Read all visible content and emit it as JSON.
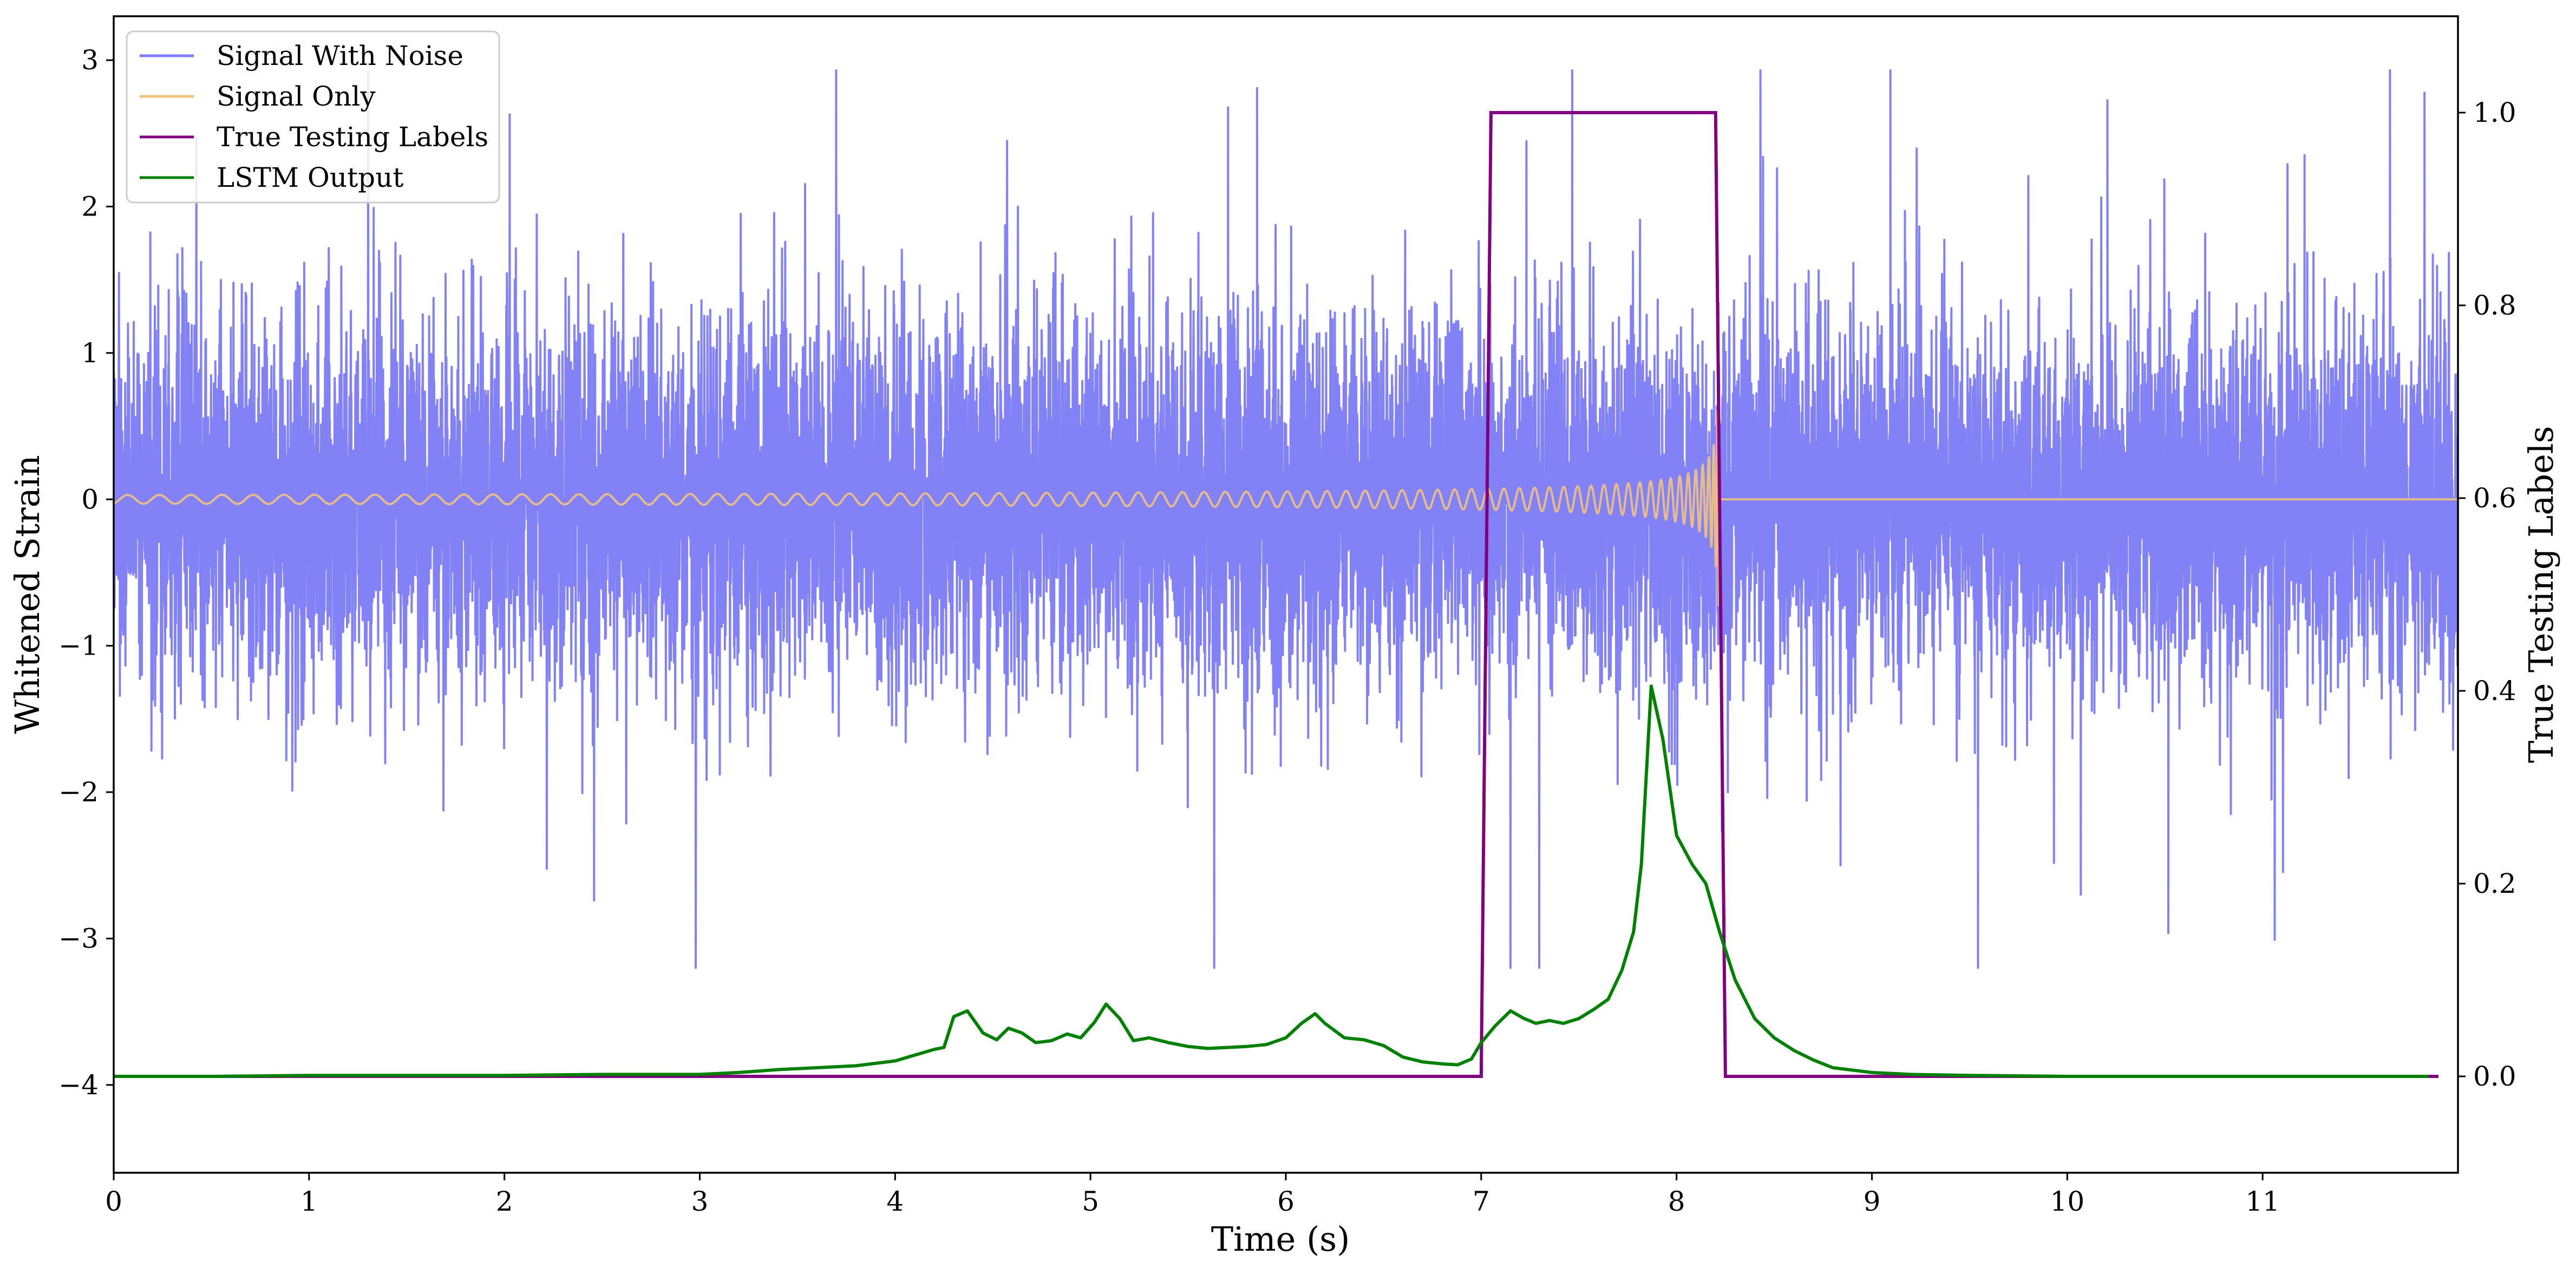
{
  "chart_data": {
    "type": "line",
    "title": "",
    "xlabel": "Time (s)",
    "ylabel_left": "Whitened Strain",
    "ylabel_right": "True Testing Labels",
    "xlim": [
      0,
      12
    ],
    "ylim_left": [
      -4.6,
      3.3
    ],
    "ylim_right": [
      -0.1,
      1.1
    ],
    "x_ticks": [
      0,
      1,
      2,
      3,
      4,
      5,
      6,
      7,
      8,
      9,
      10,
      11
    ],
    "x_tick_labels": [
      "0",
      "1",
      "2",
      "3",
      "4",
      "5",
      "6",
      "7",
      "8",
      "9",
      "10",
      "11"
    ],
    "y_left_ticks": [
      -4,
      -3,
      -2,
      -1,
      0,
      1,
      2,
      3
    ],
    "y_left_tick_labels": [
      "−4",
      "−3",
      "−2",
      "−1",
      "0",
      "1",
      "2",
      "3"
    ],
    "y_right_ticks": [
      0.0,
      0.2,
      0.4,
      0.6,
      0.8,
      1.0
    ],
    "y_right_tick_labels": [
      "0.0",
      "0.2",
      "0.4",
      "0.6",
      "0.8",
      "1.0"
    ],
    "grid": false,
    "legend_position": "top-left",
    "series": [
      {
        "name": "Signal With Noise",
        "axis": "left",
        "color": "#7b7bf5",
        "description_kind": "noise",
        "typical_amplitude_sd": 0.62,
        "peak_extent": [
          -3.2,
          2.93
        ]
      },
      {
        "name": "Signal Only",
        "axis": "left",
        "color": "#f3c27e",
        "description_kind": "chirp",
        "amplitude_start": 0.03,
        "amplitude_end": 0.75,
        "end_time": 8.22
      },
      {
        "name": "True Testing Labels",
        "axis": "right",
        "color": "#800080",
        "x": [
          0,
          7.0,
          7.05,
          8.2,
          8.25,
          11.9
        ],
        "y": [
          0,
          0,
          1,
          1,
          0,
          0
        ]
      },
      {
        "name": "LSTM Output",
        "axis": "right",
        "color": "#008000",
        "x": [
          0,
          0.5,
          1,
          1.5,
          2,
          2.5,
          2.8,
          3.0,
          3.2,
          3.4,
          3.6,
          3.8,
          4.0,
          4.1,
          4.2,
          4.25,
          4.3,
          4.37,
          4.45,
          4.52,
          4.58,
          4.65,
          4.72,
          4.8,
          4.88,
          4.95,
          5.02,
          5.08,
          5.15,
          5.22,
          5.3,
          5.4,
          5.5,
          5.6,
          5.7,
          5.8,
          5.9,
          6.0,
          6.08,
          6.15,
          6.2,
          6.3,
          6.4,
          6.5,
          6.6,
          6.7,
          6.8,
          6.88,
          6.95,
          7.0,
          7.07,
          7.15,
          7.22,
          7.28,
          7.35,
          7.42,
          7.5,
          7.58,
          7.65,
          7.72,
          7.78,
          7.82,
          7.87,
          7.93,
          8.0,
          8.08,
          8.15,
          8.22,
          8.3,
          8.4,
          8.5,
          8.6,
          8.7,
          8.8,
          9.0,
          9.2,
          9.5,
          10,
          11,
          11.85
        ],
        "y": [
          0,
          0,
          0.001,
          0.001,
          0.001,
          0.002,
          0.002,
          0.002,
          0.004,
          0.007,
          0.009,
          0.011,
          0.016,
          0.022,
          0.028,
          0.03,
          0.062,
          0.068,
          0.045,
          0.038,
          0.05,
          0.045,
          0.035,
          0.037,
          0.044,
          0.04,
          0.056,
          0.075,
          0.06,
          0.037,
          0.04,
          0.035,
          0.031,
          0.029,
          0.03,
          0.031,
          0.033,
          0.04,
          0.055,
          0.065,
          0.055,
          0.04,
          0.038,
          0.032,
          0.02,
          0.015,
          0.013,
          0.012,
          0.018,
          0.035,
          0.052,
          0.068,
          0.06,
          0.055,
          0.058,
          0.055,
          0.06,
          0.07,
          0.08,
          0.11,
          0.15,
          0.22,
          0.405,
          0.35,
          0.25,
          0.22,
          0.2,
          0.15,
          0.1,
          0.06,
          0.04,
          0.027,
          0.017,
          0.009,
          0.004,
          0.002,
          0.001,
          0,
          0,
          0
        ]
      }
    ]
  }
}
